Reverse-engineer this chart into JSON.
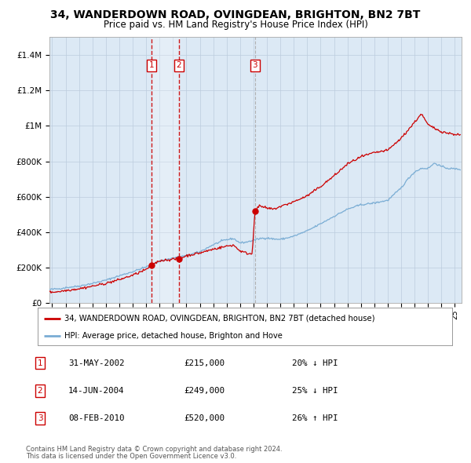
{
  "title": "34, WANDERDOWN ROAD, OVINGDEAN, BRIGHTON, BN2 7BT",
  "subtitle": "Price paid vs. HM Land Registry's House Price Index (HPI)",
  "legend_line1": "34, WANDERDOWN ROAD, OVINGDEAN, BRIGHTON, BN2 7BT (detached house)",
  "legend_line2": "HPI: Average price, detached house, Brighton and Hove",
  "footer1": "Contains HM Land Registry data © Crown copyright and database right 2024.",
  "footer2": "This data is licensed under the Open Government Licence v3.0.",
  "transactions": [
    {
      "num": 1,
      "date": "31-MAY-2002",
      "price": 215000,
      "hpi_pct": "20%",
      "direction": "↓"
    },
    {
      "num": 2,
      "date": "14-JUN-2004",
      "price": 249000,
      "hpi_pct": "25%",
      "direction": "↓"
    },
    {
      "num": 3,
      "date": "08-FEB-2010",
      "price": 520000,
      "hpi_pct": "26%",
      "direction": "↑"
    }
  ],
  "transaction_dates_decimal": [
    2002.414,
    2004.44,
    2010.103
  ],
  "transaction_prices": [
    215000,
    249000,
    520000
  ],
  "sale_color": "#cc0000",
  "hpi_color": "#7aadd4",
  "background_color": "#dce9f5",
  "grid_color": "#bbccdd",
  "ylim": [
    0,
    1500000
  ],
  "xlim_start": 1994.8,
  "xlim_end": 2025.5,
  "title_fontsize": 10,
  "subtitle_fontsize": 8.5
}
